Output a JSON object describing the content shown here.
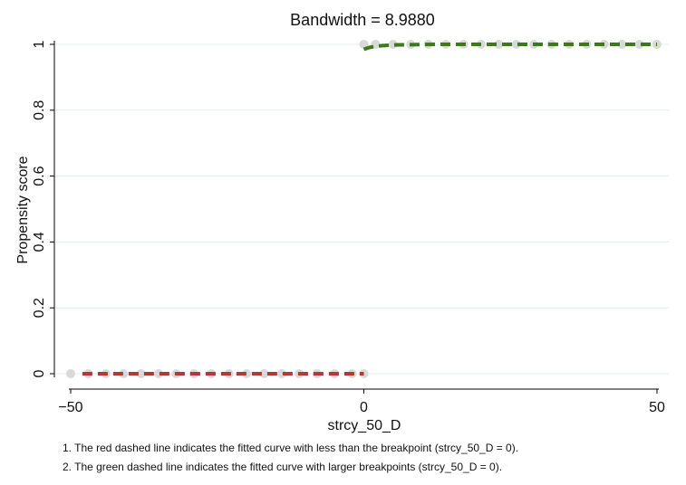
{
  "chart_data": {
    "type": "line",
    "title": "Bandwidth = 8.9880",
    "xlabel": "strcy_50_D",
    "ylabel": "Propensity score",
    "xlim": [
      -50,
      50
    ],
    "ylim": [
      0,
      1
    ],
    "x_ticks": [
      -50,
      0,
      50
    ],
    "x_tick_labels": [
      "−50",
      "0",
      "50"
    ],
    "y_ticks": [
      0,
      0.2,
      0.4,
      0.6,
      0.8,
      1
    ],
    "y_tick_labels": [
      "0",
      "0.2",
      "0.4",
      "0.6",
      "0.8",
      "1"
    ],
    "grid": "horizontal",
    "breakpoint": 0,
    "series": [
      {
        "style": "scatter",
        "color": "#d9d9d9",
        "x": [
          -50,
          -47,
          -44,
          -41,
          -38,
          -35,
          -32,
          -29,
          -26,
          -23,
          -20,
          -17,
          -14,
          -11,
          -8,
          -5,
          -2,
          0
        ],
        "y": [
          0,
          0,
          0,
          0,
          0,
          0,
          0,
          0,
          0,
          0,
          0,
          0,
          0,
          0,
          0,
          0,
          0,
          0
        ]
      },
      {
        "style": "scatter",
        "color": "#d9d9d9",
        "x": [
          0,
          2,
          5,
          8,
          11,
          14,
          17,
          20,
          23,
          26,
          29,
          32,
          35,
          38,
          41,
          44,
          47,
          50
        ],
        "y": [
          1,
          1,
          1,
          1,
          1,
          1,
          1,
          1,
          1,
          1,
          1,
          1,
          1,
          1,
          1,
          1,
          1,
          1
        ]
      },
      {
        "style": "dashed-line",
        "color": "#b03a3a",
        "x": [
          -48,
          0
        ],
        "y": [
          0,
          0
        ]
      },
      {
        "style": "dashed-line",
        "color": "#3c7a1e",
        "x": [
          0,
          1,
          2,
          3,
          5,
          8,
          12,
          20,
          30,
          40,
          50
        ],
        "y": [
          0.985,
          0.991,
          0.994,
          0.996,
          0.998,
          0.999,
          1,
          1,
          1,
          1,
          1
        ]
      }
    ]
  },
  "notes": [
    "1. The red dashed line indicates the fitted curve with less than the breakpoint (strcy_50_D = 0).",
    "2. The green dashed line indicates the fitted curve with larger breakpoints (strcy_50_D = 0)."
  ]
}
